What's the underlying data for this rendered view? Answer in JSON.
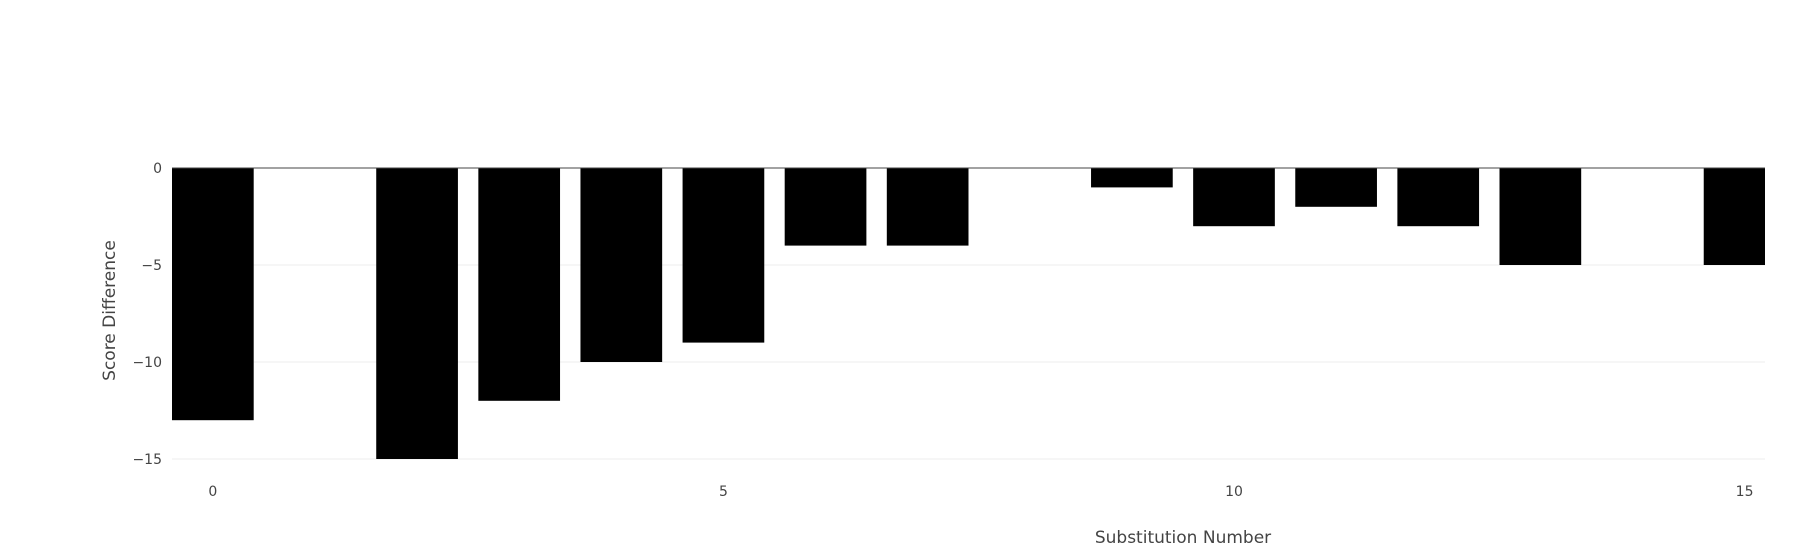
{
  "chart_data": {
    "type": "bar",
    "title": "",
    "xlabel": "Substitution Number",
    "ylabel": "Score Difference",
    "x": [
      0,
      1,
      2,
      3,
      4,
      5,
      6,
      7,
      8,
      9,
      10,
      11,
      12,
      13,
      14,
      15
    ],
    "values": [
      -13,
      0,
      -15,
      -12,
      -10,
      -9,
      -4,
      -4,
      0,
      -1,
      -3,
      -2,
      -3,
      -5,
      0,
      -5
    ],
    "xlim": [
      -0.4,
      15.2
    ],
    "ylim": [
      -15,
      0
    ],
    "x_ticks": [
      0,
      5,
      10,
      15
    ],
    "y_ticks": [
      0,
      -5,
      -10,
      -15
    ],
    "y_tick_labels": [
      "0",
      "−5",
      "−10",
      "−15"
    ],
    "bar_color": "#000000",
    "grid": true,
    "grid_color": "#eeeeee",
    "zero_line_color": "#444444",
    "legend": false
  }
}
